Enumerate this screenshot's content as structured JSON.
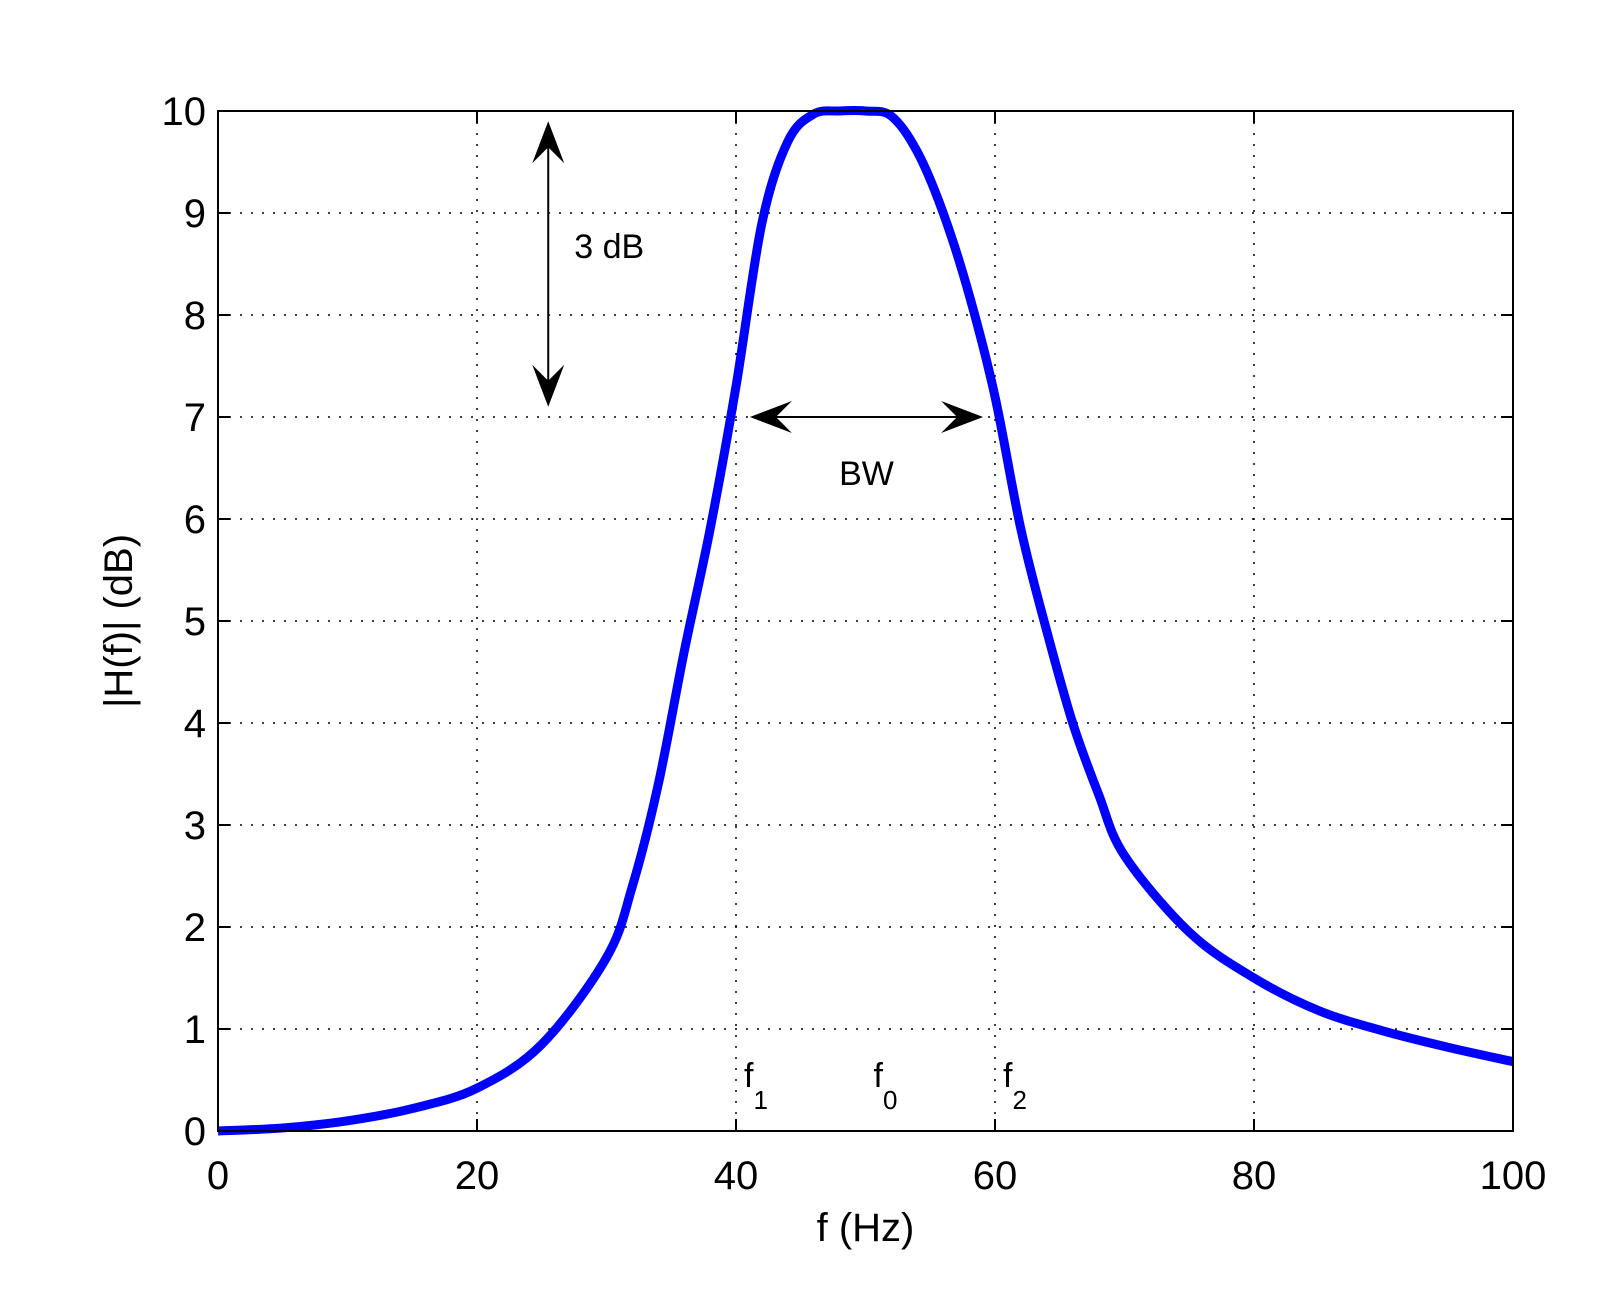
{
  "chart_data": {
    "type": "line",
    "title": "",
    "xlabel": "f (Hz)",
    "ylabel": "|H(f)| (dB)",
    "xlim": [
      0,
      100
    ],
    "ylim": [
      0,
      10
    ],
    "x_ticks": [
      "0",
      "20",
      "40",
      "60",
      "80",
      "100"
    ],
    "y_ticks": [
      "0",
      "1",
      "2",
      "3",
      "4",
      "5",
      "6",
      "7",
      "8",
      "9",
      "10"
    ],
    "grid": true,
    "colors": {
      "series": "#0000ff"
    },
    "series": [
      {
        "x": [
          0,
          5,
          10,
          15,
          20,
          25,
          30,
          32,
          34,
          36,
          38,
          40,
          42,
          44,
          46,
          48,
          50,
          52,
          54,
          56,
          58,
          60,
          62,
          64,
          66,
          68,
          70,
          75,
          80,
          85,
          90,
          95,
          100
        ],
        "y": [
          0.0,
          0.03,
          0.1,
          0.22,
          0.42,
          0.85,
          1.7,
          2.4,
          3.4,
          4.7,
          5.9,
          7.3,
          8.9,
          9.7,
          9.97,
          10.0,
          10.0,
          9.95,
          9.6,
          9.0,
          8.2,
          7.2,
          5.9,
          4.9,
          4.0,
          3.3,
          2.7,
          1.95,
          1.5,
          1.18,
          0.98,
          0.82,
          0.68
        ]
      }
    ],
    "annotations": {
      "gain_arrow": {
        "x": 25.5,
        "y_from": 7.1,
        "y_to": 9.9,
        "label": "3 dB"
      },
      "bw_arrow": {
        "y": 7.0,
        "x_from": 42,
        "x_to": 58,
        "label": "BW"
      },
      "freq_markers": [
        {
          "x": 40,
          "base": "f",
          "sub": "1"
        },
        {
          "x": 50,
          "base": "f",
          "sub": "0"
        },
        {
          "x": 60,
          "base": "f",
          "sub": "2"
        }
      ]
    }
  }
}
